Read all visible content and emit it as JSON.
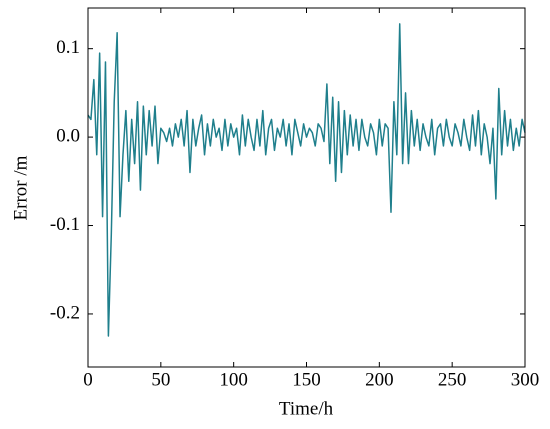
{
  "chart_data": {
    "type": "line",
    "x_label": "Time/h",
    "y_label": "Error /m",
    "x": [
      0,
      2,
      4,
      6,
      8,
      10,
      12,
      14,
      16,
      18,
      20,
      22,
      24,
      26,
      28,
      30,
      32,
      34,
      36,
      38,
      40,
      42,
      44,
      46,
      48,
      50,
      52,
      54,
      56,
      58,
      60,
      62,
      64,
      66,
      68,
      70,
      72,
      74,
      76,
      78,
      80,
      82,
      84,
      86,
      88,
      90,
      92,
      94,
      96,
      98,
      100,
      102,
      104,
      106,
      108,
      110,
      112,
      114,
      116,
      118,
      120,
      122,
      124,
      126,
      128,
      130,
      132,
      134,
      136,
      138,
      140,
      142,
      144,
      146,
      148,
      150,
      152,
      154,
      156,
      158,
      160,
      162,
      164,
      166,
      168,
      170,
      172,
      174,
      176,
      178,
      180,
      182,
      184,
      186,
      188,
      190,
      192,
      194,
      196,
      198,
      200,
      202,
      204,
      206,
      208,
      210,
      212,
      214,
      216,
      218,
      220,
      222,
      224,
      226,
      228,
      230,
      232,
      234,
      236,
      238,
      240,
      242,
      244,
      246,
      248,
      250,
      252,
      254,
      256,
      258,
      260,
      262,
      264,
      266,
      268,
      270,
      272,
      274,
      276,
      278,
      280,
      282,
      284,
      286,
      288,
      290,
      292,
      294,
      296,
      298,
      300
    ],
    "series": [
      {
        "name": "Error",
        "color": "#1f7f8c",
        "values": [
          0.025,
          0.02,
          0.065,
          -0.02,
          0.095,
          -0.09,
          0.085,
          -0.225,
          -0.11,
          0.04,
          0.118,
          -0.09,
          -0.02,
          0.03,
          -0.05,
          0.02,
          -0.03,
          0.04,
          -0.06,
          0.035,
          -0.02,
          0.03,
          -0.01,
          0.035,
          -0.03,
          0.01,
          0.005,
          -0.005,
          0.01,
          -0.01,
          0.015,
          0.0,
          0.02,
          -0.01,
          0.03,
          -0.04,
          0.02,
          -0.01,
          0.01,
          0.025,
          -0.02,
          0.015,
          -0.01,
          0.02,
          0.0,
          0.01,
          -0.015,
          0.02,
          -0.01,
          0.015,
          0.0,
          0.01,
          -0.02,
          0.025,
          -0.01,
          0.02,
          0.0,
          -0.015,
          0.02,
          -0.01,
          0.03,
          -0.02,
          0.01,
          0.02,
          -0.015,
          0.01,
          0.0,
          0.02,
          -0.01,
          0.015,
          -0.02,
          0.02,
          0.005,
          -0.01,
          0.015,
          0.0,
          0.01,
          0.005,
          -0.01,
          0.015,
          0.01,
          -0.005,
          0.06,
          -0.03,
          0.045,
          -0.05,
          0.04,
          -0.04,
          0.03,
          -0.02,
          0.025,
          -0.01,
          0.02,
          -0.015,
          0.02,
          0.0,
          -0.01,
          0.015,
          0.005,
          -0.02,
          0.02,
          -0.01,
          0.015,
          0.01,
          -0.085,
          0.04,
          -0.02,
          0.128,
          -0.03,
          0.05,
          -0.03,
          0.03,
          -0.01,
          0.02,
          -0.015,
          0.015,
          0.0,
          -0.01,
          0.02,
          -0.02,
          0.01,
          0.015,
          -0.01,
          0.02,
          0.0,
          -0.01,
          0.015,
          0.005,
          -0.01,
          0.02,
          0.0,
          -0.015,
          0.025,
          -0.01,
          0.03,
          -0.02,
          0.015,
          0.0,
          -0.03,
          0.01,
          -0.07,
          0.055,
          -0.02,
          0.03,
          -0.01,
          0.02,
          -0.015,
          0.01,
          -0.01,
          0.02,
          0.005
        ]
      }
    ],
    "xlim": [
      0,
      300
    ],
    "xticks": [
      0,
      50,
      100,
      150,
      200,
      250,
      300
    ],
    "ylim": [
      -0.26,
      0.146
    ],
    "yticks": [
      -0.2,
      -0.1,
      {
        "value": 0,
        "label": "0.0"
      },
      0.1
    ]
  }
}
